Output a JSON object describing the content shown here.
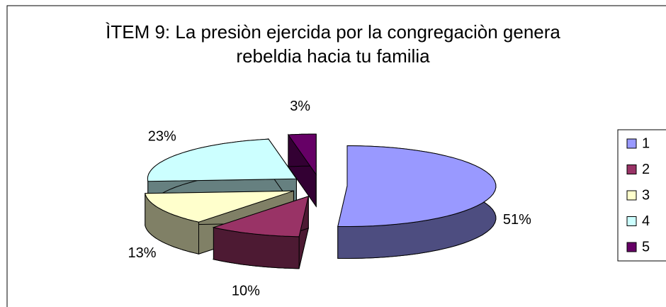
{
  "chart_data": {
    "type": "pie",
    "title": "ÌTEM 9: La presiòn ejercida por la congregaciòn genera rebeldia hacia tu familia",
    "categories": [
      "1",
      "2",
      "3",
      "4",
      "5"
    ],
    "values": [
      51,
      10,
      13,
      23,
      3
    ],
    "value_labels": [
      "51%",
      "10%",
      "13%",
      "23%",
      "3%"
    ],
    "colors": [
      "#9999ff",
      "#993366",
      "#ffffcc",
      "#ccffff",
      "#660066"
    ],
    "legend": "right"
  }
}
